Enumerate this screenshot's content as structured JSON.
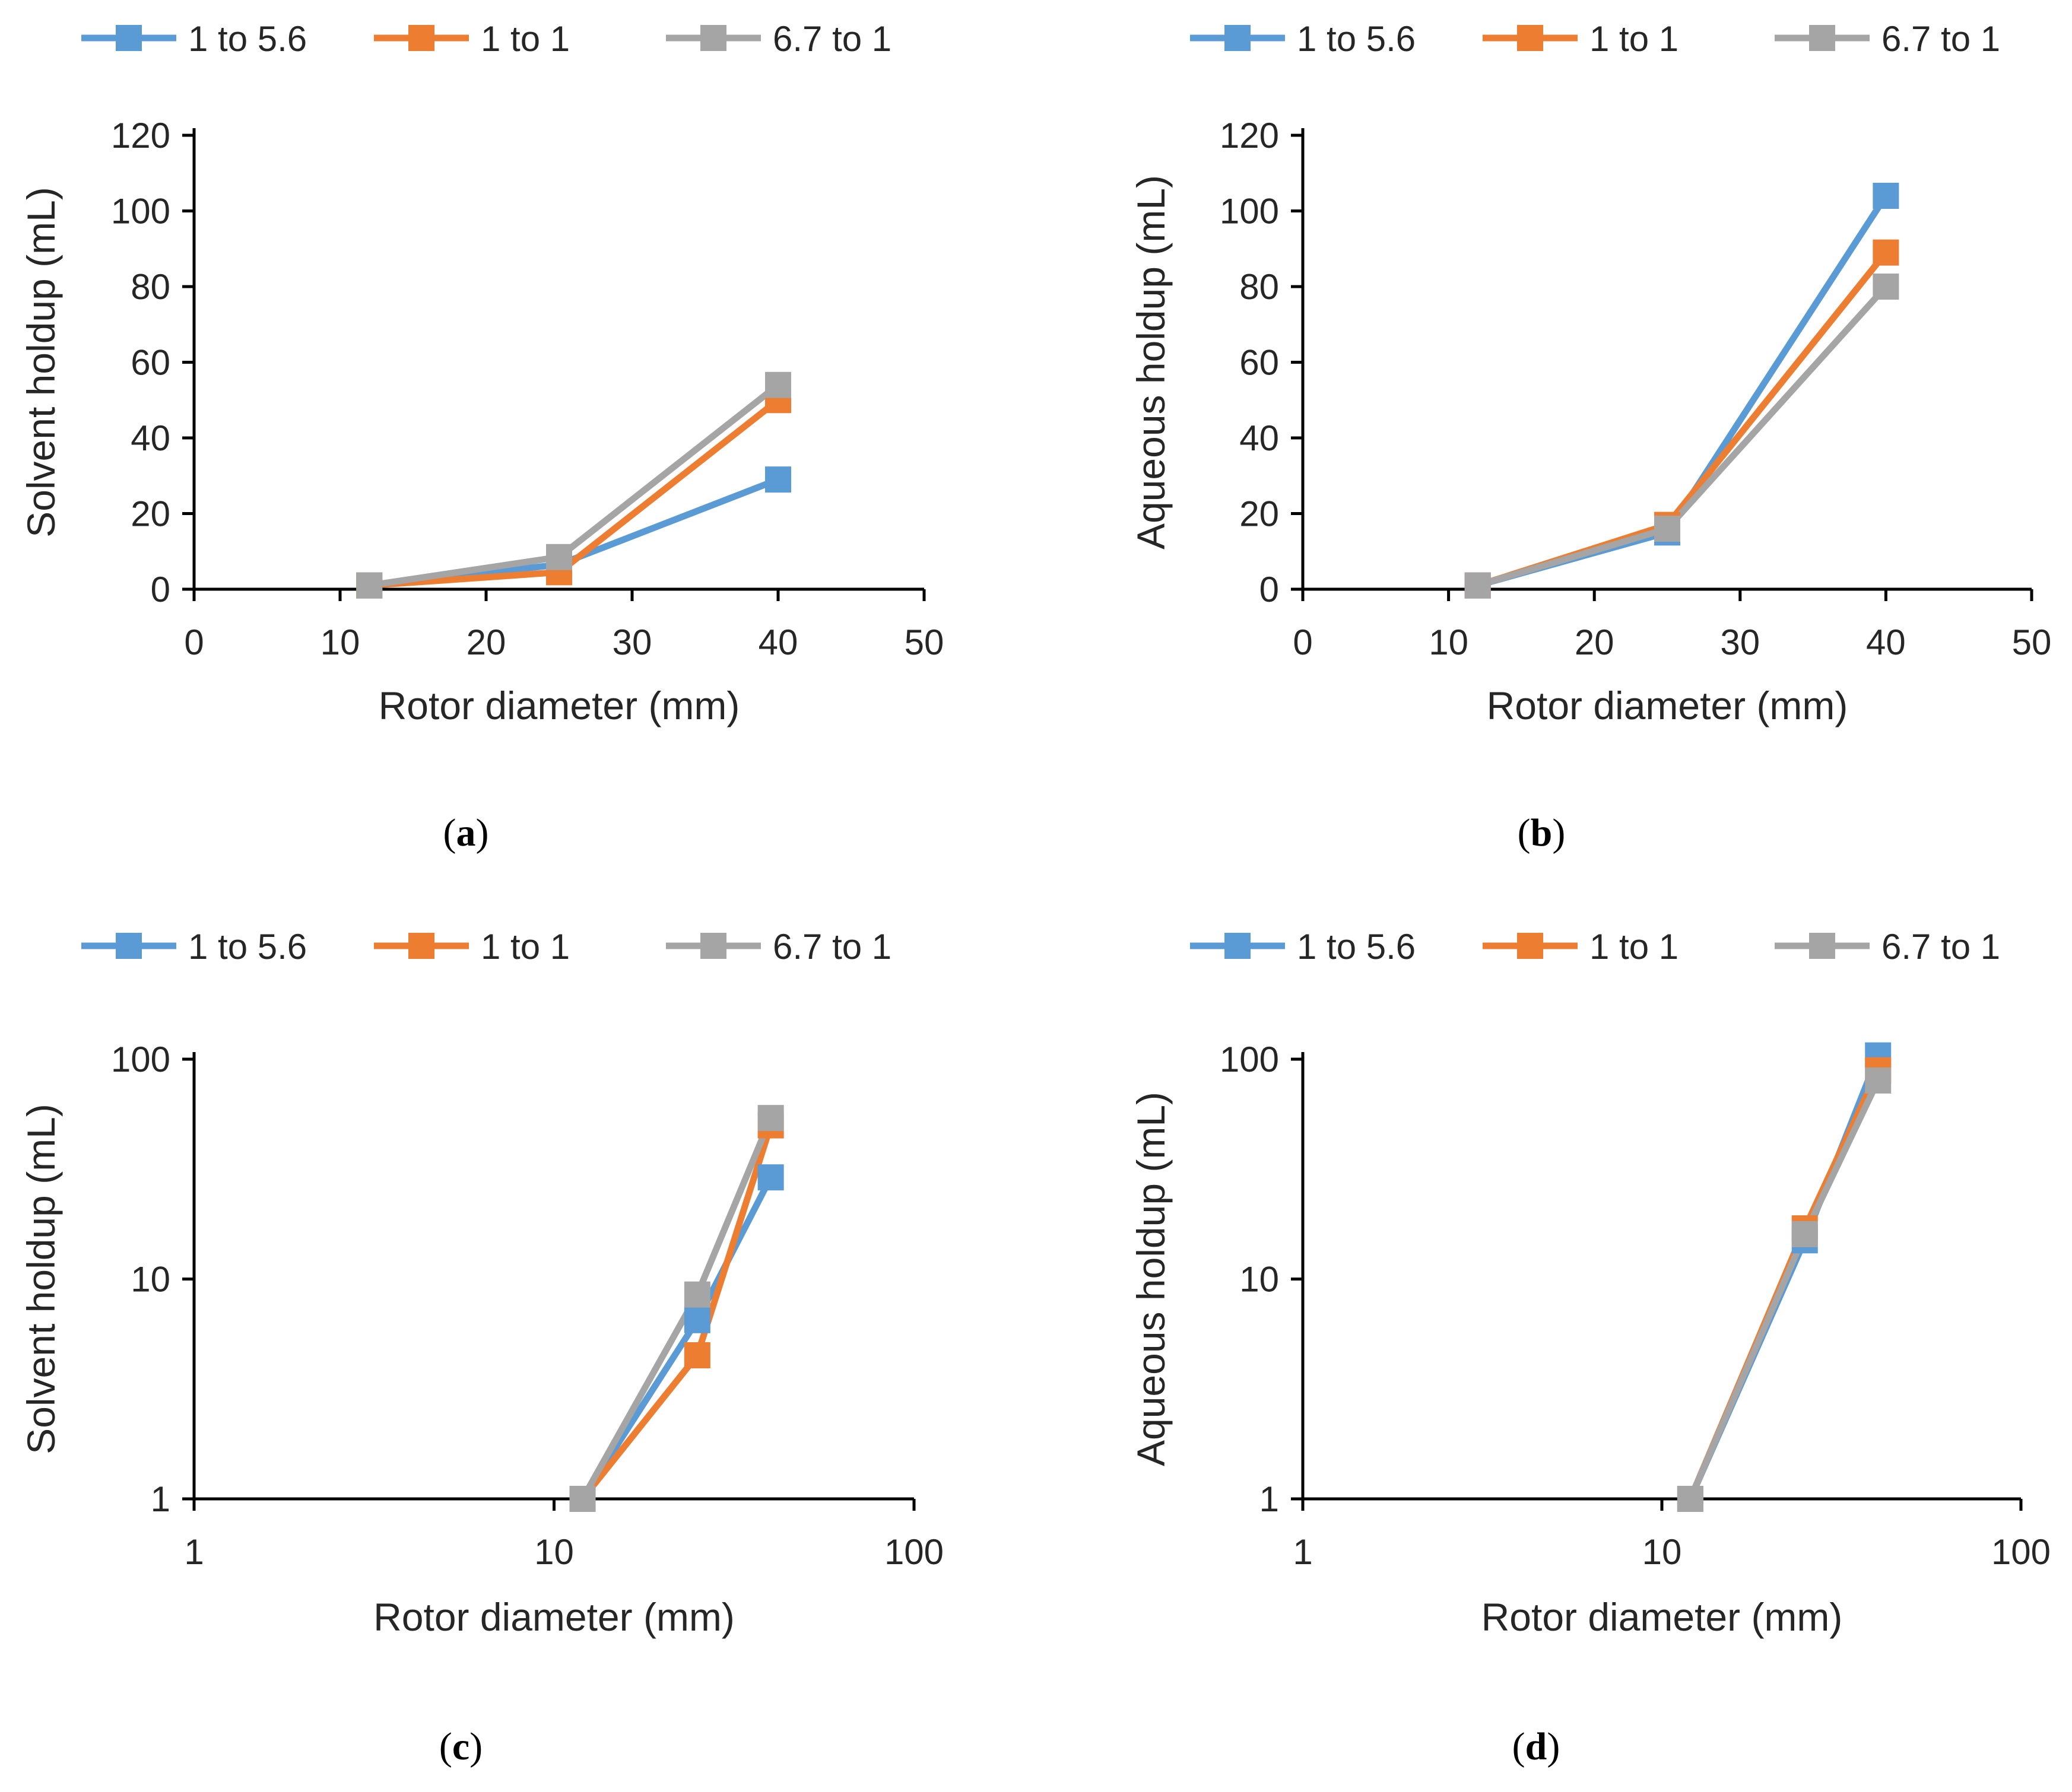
{
  "series_colors": {
    "1 to 5.6": "#5B9BD5",
    "1 to 1": "#ED7D31",
    "6.7 to 1": "#A5A5A5"
  },
  "chart_data": [
    {
      "panel": "a",
      "panel_label": "(a)",
      "type": "line",
      "xscale": "linear",
      "yscale": "linear",
      "xlabel": "Rotor diameter (mm)",
      "ylabel": "Solvent holdup (mL)",
      "xlim": [
        0,
        50
      ],
      "ylim": [
        0,
        120
      ],
      "xticks": [
        0,
        10,
        20,
        30,
        40,
        50
      ],
      "yticks": [
        0,
        20,
        40,
        60,
        80,
        100,
        120
      ],
      "legend": "top",
      "series": [
        {
          "name": "1 to 5.6",
          "x": [
            12,
            25,
            40
          ],
          "y": [
            1,
            6.5,
            29
          ]
        },
        {
          "name": "1 to 1",
          "x": [
            12,
            25,
            40
          ],
          "y": [
            1,
            4.5,
            50
          ]
        },
        {
          "name": "6.7 to 1",
          "x": [
            12,
            25,
            40
          ],
          "y": [
            1,
            8.5,
            54
          ]
        }
      ]
    },
    {
      "panel": "b",
      "panel_label": "(b)",
      "type": "line",
      "xscale": "linear",
      "yscale": "linear",
      "xlabel": "Rotor diameter (mm)",
      "ylabel": "Aqueous holdup (mL)",
      "xlim": [
        0,
        50
      ],
      "ylim": [
        0,
        120
      ],
      "xticks": [
        0,
        10,
        20,
        30,
        40,
        50
      ],
      "yticks": [
        0,
        20,
        40,
        60,
        80,
        100,
        120
      ],
      "legend": "top",
      "series": [
        {
          "name": "1 to 5.6",
          "x": [
            12,
            25,
            40
          ],
          "y": [
            1,
            15,
            104
          ]
        },
        {
          "name": "1 to 1",
          "x": [
            12,
            25,
            40
          ],
          "y": [
            1,
            17,
            89
          ]
        },
        {
          "name": "6.7 to 1",
          "x": [
            12,
            25,
            40
          ],
          "y": [
            1,
            16,
            80
          ]
        }
      ]
    },
    {
      "panel": "c",
      "panel_label": "(c)",
      "type": "line",
      "xscale": "log",
      "yscale": "log",
      "xlabel": "Rotor diameter (mm)",
      "ylabel": "Solvent holdup (mL)",
      "xlim": [
        1,
        100
      ],
      "ylim": [
        1,
        100
      ],
      "xticks": [
        1,
        10,
        100
      ],
      "yticks": [
        1,
        10,
        100
      ],
      "legend": "top",
      "series": [
        {
          "name": "1 to 5.6",
          "x": [
            12,
            25,
            40
          ],
          "y": [
            1,
            6.5,
            29
          ]
        },
        {
          "name": "1 to 1",
          "x": [
            12,
            25,
            40
          ],
          "y": [
            1,
            4.5,
            50
          ]
        },
        {
          "name": "6.7 to 1",
          "x": [
            12,
            25,
            40
          ],
          "y": [
            1,
            8.5,
            54
          ]
        }
      ]
    },
    {
      "panel": "d",
      "panel_label": "(d)",
      "type": "line",
      "xscale": "log",
      "yscale": "log",
      "xlabel": "Rotor diameter (mm)",
      "ylabel": "Aqueous holdup (mL)",
      "xlim": [
        1,
        100
      ],
      "ylim": [
        1,
        100
      ],
      "xticks": [
        1,
        10,
        100
      ],
      "yticks": [
        1,
        10,
        100
      ],
      "legend": "top",
      "series": [
        {
          "name": "1 to 5.6",
          "x": [
            12,
            25,
            40
          ],
          "y": [
            1,
            15,
            104
          ]
        },
        {
          "name": "1 to 1",
          "x": [
            12,
            25,
            40
          ],
          "y": [
            1,
            17,
            89
          ]
        },
        {
          "name": "6.7 to 1",
          "x": [
            12,
            25,
            40
          ],
          "y": [
            1,
            16,
            80
          ]
        }
      ]
    }
  ]
}
